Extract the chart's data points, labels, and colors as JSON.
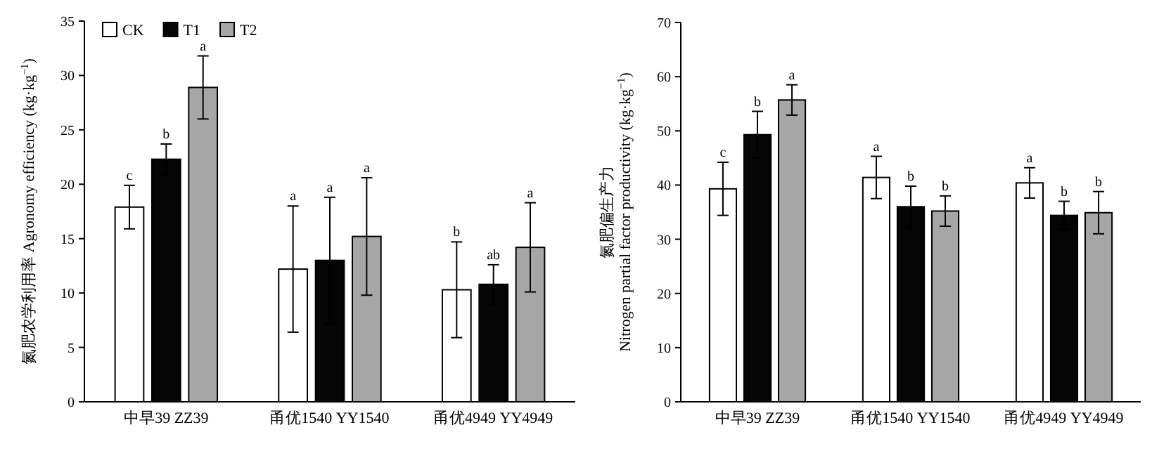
{
  "chart_data": [
    {
      "type": "bar",
      "categories": [
        "中早39 ZZ39",
        "甬优1540 YY1540",
        "甬优4949 YY4949"
      ],
      "ylabel": "氮肥农学利用率 Agronomy efficiency (kg·kg$^{−1}$)",
      "ylim": [
        0,
        35
      ],
      "yticks": [
        0,
        5,
        10,
        15,
        20,
        25,
        30,
        35
      ],
      "legend": "top left",
      "grid": false,
      "series": [
        {
          "name": "CK",
          "color": "#ffffff",
          "values": [
            17.9,
            12.2,
            10.3
          ],
          "errors": [
            2.0,
            5.8,
            4.4
          ]
        },
        {
          "name": "T1",
          "color": "#050505",
          "values": [
            22.3,
            13.0,
            10.8
          ],
          "errors": [
            1.4,
            5.8,
            1.8
          ]
        },
        {
          "name": "T2",
          "color": "#a6a6a6",
          "values": [
            28.9,
            15.2,
            14.2
          ],
          "errors": [
            2.9,
            5.4,
            4.1
          ]
        }
      ],
      "annotations": [
        "c",
        "b",
        "a",
        "a",
        "a",
        "a",
        "b",
        "ab",
        "a"
      ]
    },
    {
      "type": "bar",
      "categories": [
        "中早39 ZZ39",
        "甬优1540 YY1540",
        "甬优4949 YY4949"
      ],
      "ylabel": "氮肥偏生产力\nNitrogen partial factor productivity (kg·kg$^{−1}$)",
      "ylim": [
        0,
        70
      ],
      "yticks": [
        0,
        10,
        20,
        30,
        40,
        50,
        60,
        70
      ],
      "grid": false,
      "series": [
        {
          "color": "#ffffff",
          "values": [
            39.3,
            41.4,
            40.4
          ],
          "errors": [
            4.9,
            3.9,
            2.8
          ]
        },
        {
          "color": "#050505",
          "values": [
            49.3,
            36.0,
            34.4
          ],
          "errors": [
            4.3,
            3.8,
            2.6
          ]
        },
        {
          "color": "#a6a6a6",
          "values": [
            55.7,
            35.2,
            34.9
          ],
          "errors": [
            2.8,
            2.8,
            3.9
          ]
        }
      ],
      "annotations": [
        "c",
        "b",
        "a",
        "a",
        "b",
        "b",
        "a",
        "b",
        "b"
      ]
    }
  ]
}
